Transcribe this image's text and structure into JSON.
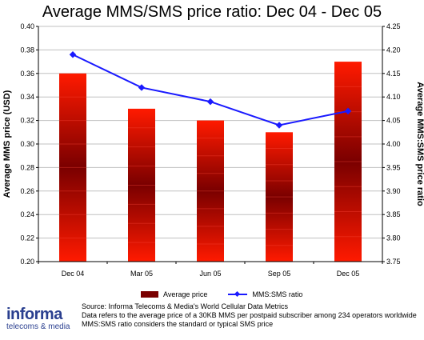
{
  "chart_data": {
    "type": "bar",
    "title": "Average MMS/SMS price ratio: Dec 04 - Dec 05",
    "categories": [
      "Dec 04",
      "Mar 05",
      "Jun 05",
      "Sep 05",
      "Dec 05"
    ],
    "ylabel_left": "Average MMS price (USD)",
    "ylabel_right": "Average MMS:SMS price ratio",
    "ylim_left": [
      0.2,
      0.4
    ],
    "ylim_right": [
      3.75,
      4.25
    ],
    "yticks_left": [
      "0.20",
      "0.22",
      "0.24",
      "0.26",
      "0.28",
      "0.30",
      "0.32",
      "0.34",
      "0.36",
      "0.38",
      "0.40"
    ],
    "yticks_right": [
      "3.75",
      "3.80",
      "3.85",
      "3.90",
      "3.95",
      "4.00",
      "4.05",
      "4.10",
      "4.15",
      "4.20",
      "4.25"
    ],
    "grid": true,
    "series": [
      {
        "name": "Average price",
        "type": "bar",
        "axis": "left",
        "values": [
          0.36,
          0.33,
          0.32,
          0.31,
          0.37
        ]
      },
      {
        "name": "MMS:SMS ratio",
        "type": "line",
        "axis": "right",
        "values": [
          4.19,
          4.12,
          4.09,
          4.04,
          4.07
        ]
      }
    ],
    "colors": {
      "bar_dark": "#7a0000",
      "bar_bright": "#ff1a00",
      "line": "#1a1aff",
      "grid": "#c0c0c0"
    }
  },
  "notes": {
    "source": "Source: Informa Telecoms & Media's World Cellular Data Metrics",
    "data": "Data refers to the average price of a 30KB MMS per postpaid subscriber among 234 operators worldwide",
    "ratio": "MMS:SMS ratio considers the standard or typical SMS price"
  },
  "logo": {
    "main": "informa",
    "sub": "telecoms & media"
  }
}
